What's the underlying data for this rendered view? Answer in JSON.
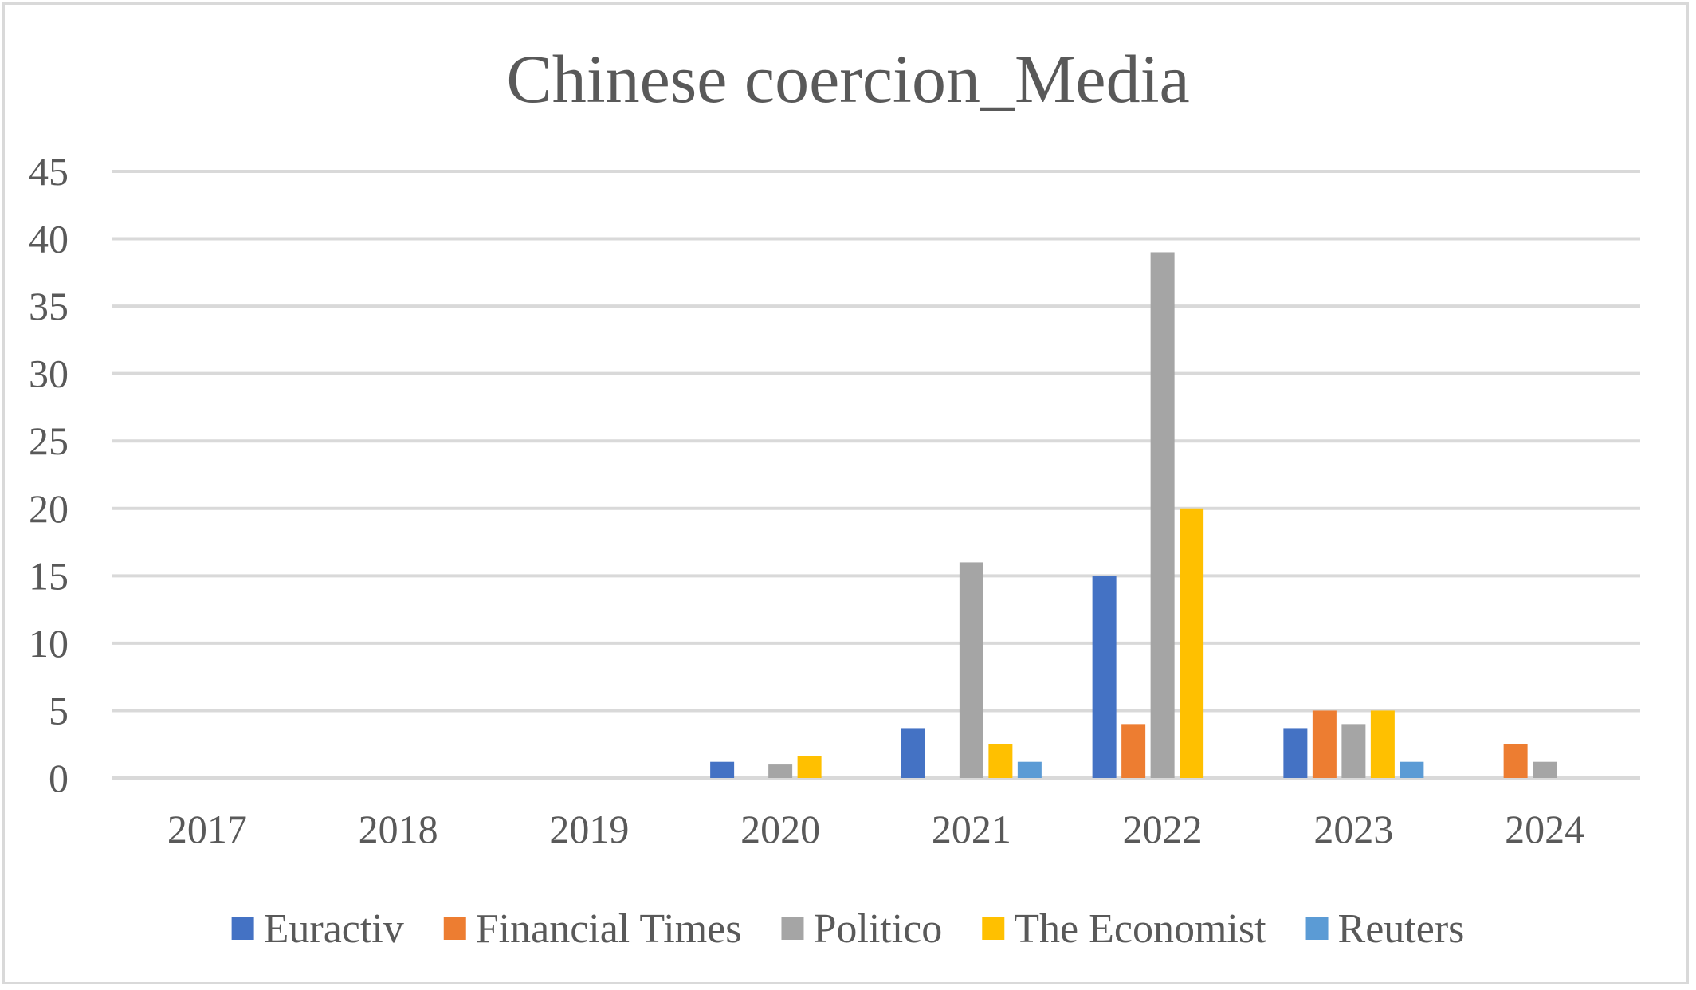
{
  "chart_data": {
    "type": "bar",
    "title": "Chinese coercion_Media",
    "xlabel": "",
    "ylabel": "",
    "categories": [
      "2017",
      "2018",
      "2019",
      "2020",
      "2021",
      "2022",
      "2023",
      "2024"
    ],
    "ylim": [
      0,
      45
    ],
    "yticks": [
      "0",
      "5",
      "10",
      "15",
      "20",
      "25",
      "30",
      "35",
      "40",
      "45"
    ],
    "grid": true,
    "legend_position": "bottom",
    "series": [
      {
        "name": "Euractiv",
        "color": "#4472C4",
        "values": [
          0,
          0,
          0,
          1.2,
          3.7,
          15,
          3.7,
          0
        ]
      },
      {
        "name": "Financial Times",
        "color": "#ED7D31",
        "values": [
          0,
          0,
          0,
          0,
          0,
          4,
          5,
          2.5
        ]
      },
      {
        "name": "Politico",
        "color": "#A5A5A5",
        "values": [
          0,
          0,
          0,
          1,
          16,
          39,
          4,
          1.2
        ]
      },
      {
        "name": "The Economist",
        "color": "#FFC000",
        "values": [
          0,
          0,
          0,
          1.6,
          2.5,
          20,
          5,
          0
        ]
      },
      {
        "name": "Reuters",
        "color": "#5B9BD5",
        "values": [
          0,
          0,
          0,
          0,
          1.2,
          0,
          1.2,
          0
        ]
      }
    ]
  }
}
